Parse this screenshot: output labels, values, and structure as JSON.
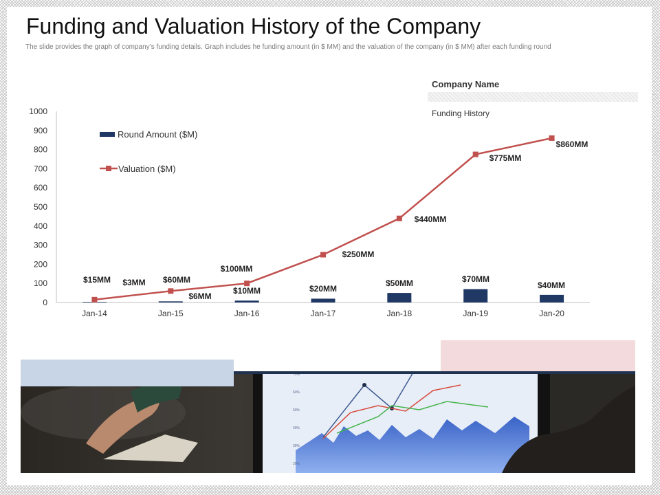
{
  "slide": {
    "title": "Funding  and Valuation History of the Company",
    "subtitle": "The slide provides the graph of company’s funding details. Graph includes he funding amount (in $ MM) and the valuation of the company (in $ MM) after each funding round",
    "company_name": "Company Name",
    "funding_history": "Funding History"
  },
  "colors": {
    "bar": "#1f3864",
    "line": "#c0504d",
    "axis_text": "#333333",
    "pink_box": "#f2dadd",
    "blue_box": "#c8d5e6"
  },
  "photo": {
    "icon": "stock-chart-photo",
    "tick_labels": [
      "70%",
      "60%",
      "50%",
      "40%",
      "30%",
      "20%"
    ]
  },
  "chart_data": {
    "type": "bar",
    "categories": [
      "Jan-14",
      "Jan-15",
      "Jan-16",
      "Jan-17",
      "Jan-18",
      "Jan-19",
      "Jan-20"
    ],
    "ylim": [
      0,
      1000
    ],
    "yticks": [
      0,
      100,
      200,
      300,
      400,
      500,
      600,
      700,
      800,
      900,
      1000
    ],
    "grid": false,
    "legend_position": "top-left",
    "series": [
      {
        "name": "Round Amount ($M)",
        "type": "bar",
        "values": [
          3,
          6,
          10,
          20,
          50,
          70,
          40
        ],
        "labels": [
          "$3MM",
          "$6MM",
          "$10MM",
          "$20MM",
          "$50MM",
          "$70MM",
          "$40MM"
        ]
      },
      {
        "name": "Valuation ($M)",
        "type": "line",
        "values": [
          15,
          60,
          100,
          250,
          440,
          775,
          860
        ],
        "labels": [
          "$15MM",
          "$60MM",
          "$100MM",
          "$250MM",
          "$440MM",
          "$775MM",
          "$860MM"
        ]
      }
    ]
  }
}
